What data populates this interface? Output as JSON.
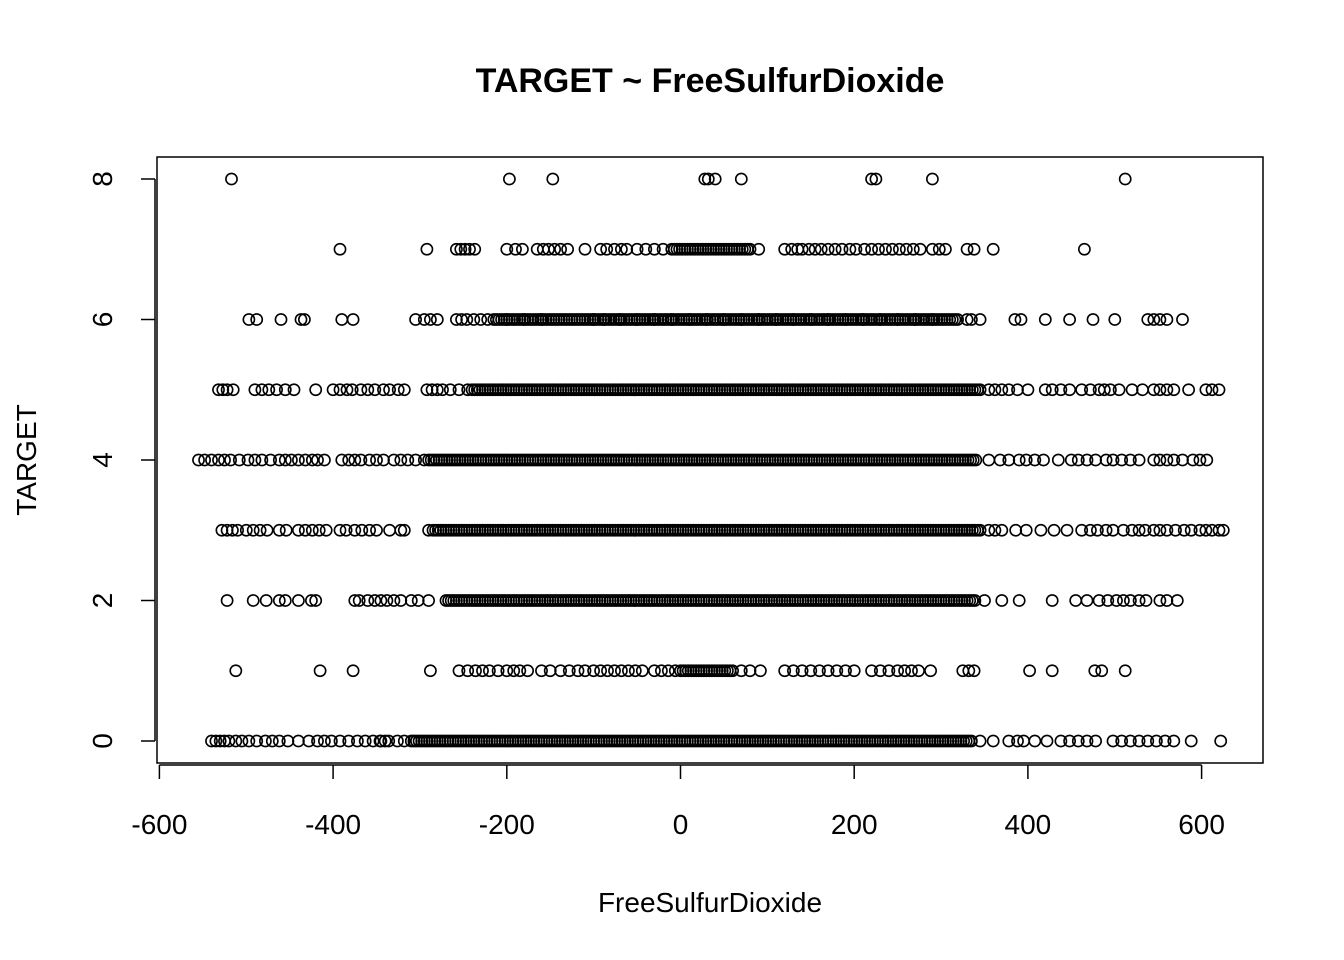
{
  "chart_data": {
    "type": "scatter",
    "title": "TARGET ~ FreeSulfurDioxide",
    "xlabel": "FreeSulfurDioxide",
    "ylabel": "TARGET",
    "xlim": [
      -560,
      625
    ],
    "ylim": [
      -0.3,
      8.3
    ],
    "xticks": [
      -600,
      -400,
      -200,
      0,
      200,
      400,
      600
    ],
    "yticks": [
      0,
      2,
      4,
      6,
      8
    ],
    "grid": false,
    "legend": "none",
    "marker": "open-circle",
    "point_color": "#000000",
    "rows": [
      {
        "y": 0,
        "dense": [
          -310,
          335
        ],
        "x": [
          -540,
          -535,
          -530,
          -525,
          -520,
          -512,
          -505,
          -497,
          -488,
          -478,
          -470,
          -462,
          -452,
          -440,
          -428,
          -418,
          -410,
          -402,
          -392,
          -382,
          -372,
          -363,
          -354,
          -346,
          -336,
          -326,
          -318,
          -340,
          -345,
          345,
          360,
          378,
          388,
          395,
          408,
          422,
          438,
          448,
          458,
          468,
          478,
          498,
          508,
          518,
          528,
          538,
          548,
          558,
          568,
          588,
          622
        ]
      },
      {
        "y": 1,
        "dense": [
          0,
          60
        ],
        "x": [
          -512,
          -415,
          -377,
          -288,
          -255,
          -245,
          -236,
          -228,
          -220,
          -210,
          -200,
          -192,
          -185,
          -176,
          -160,
          -150,
          -138,
          -128,
          -118,
          -110,
          -100,
          -92,
          -84,
          -76,
          -68,
          -60,
          -52,
          -44,
          -30,
          -22,
          -14,
          -6,
          70,
          80,
          92,
          120,
          130,
          140,
          150,
          160,
          170,
          180,
          190,
          200,
          220,
          230,
          240,
          250,
          258,
          266,
          274,
          288,
          325,
          332,
          338,
          402,
          428,
          477,
          485,
          512
        ]
      },
      {
        "y": 2,
        "dense": [
          -270,
          340
        ],
        "x": [
          -522,
          -492,
          -477,
          -462,
          -455,
          -440,
          -425,
          -420,
          -375,
          -370,
          -360,
          -352,
          -345,
          -338,
          -330,
          -322,
          -310,
          -302,
          -290,
          350,
          370,
          390,
          428,
          455,
          468,
          482,
          492,
          502,
          510,
          518,
          528,
          536,
          552,
          560,
          572
        ]
      },
      {
        "y": 3,
        "dense": [
          -285,
          345
        ],
        "x": [
          -528,
          -522,
          -516,
          -510,
          -500,
          -492,
          -484,
          -476,
          -462,
          -454,
          -440,
          -432,
          -424,
          -416,
          -408,
          -392,
          -385,
          -375,
          -367,
          -358,
          -350,
          -335,
          -322,
          -318,
          -290,
          355,
          362,
          370,
          386,
          398,
          415,
          430,
          445,
          462,
          472,
          480,
          490,
          498,
          510,
          520,
          528,
          535,
          545,
          552,
          560,
          570,
          580,
          588,
          598,
          605,
          612,
          620,
          625
        ]
      },
      {
        "y": 4,
        "dense": [
          -290,
          340
        ],
        "x": [
          -555,
          -548,
          -540,
          -532,
          -525,
          -518,
          -508,
          -498,
          -490,
          -482,
          -472,
          -462,
          -455,
          -448,
          -440,
          -432,
          -424,
          -418,
          -410,
          -390,
          -382,
          -375,
          -368,
          -358,
          -350,
          -342,
          -330,
          -322,
          -314,
          -305,
          -295,
          355,
          368,
          378,
          390,
          398,
          408,
          418,
          435,
          450,
          458,
          468,
          478,
          490,
          498,
          508,
          518,
          528,
          545,
          552,
          560,
          568,
          578,
          590,
          598,
          606
        ]
      },
      {
        "y": 5,
        "dense": [
          -240,
          345
        ],
        "x": [
          -532,
          -527,
          -522,
          -515,
          -490,
          -482,
          -474,
          -465,
          -455,
          -445,
          -420,
          -400,
          -392,
          -384,
          -378,
          -368,
          -360,
          -352,
          -342,
          -335,
          -325,
          -318,
          -292,
          -286,
          -280,
          -274,
          -265,
          -255,
          -245,
          355,
          362,
          370,
          378,
          388,
          400,
          420,
          428,
          438,
          448,
          462,
          472,
          482,
          488,
          495,
          505,
          520,
          532,
          545,
          552,
          560,
          568,
          585,
          605,
          612,
          620
        ]
      },
      {
        "y": 6,
        "dense": [
          -215,
          320
        ],
        "x": [
          -497,
          -488,
          -460,
          -437,
          -433,
          -390,
          -377,
          -305,
          -295,
          -288,
          -280,
          -258,
          -252,
          -246,
          -238,
          -230,
          -222,
          -200,
          -180,
          -160,
          -100,
          -88,
          -70,
          -50,
          -30,
          -10,
          10,
          30,
          50,
          70,
          90,
          110,
          130,
          150,
          170,
          190,
          210,
          230,
          250,
          270,
          290,
          330,
          335,
          345,
          385,
          392,
          420,
          448,
          475,
          500,
          538,
          545,
          552,
          560,
          578
        ]
      },
      {
        "y": 7,
        "dense": [
          -10,
          80
        ],
        "x": [
          -392,
          -292,
          -258,
          -253,
          -248,
          -243,
          -237,
          -200,
          -190,
          -182,
          -165,
          -158,
          -152,
          -145,
          -138,
          -130,
          -110,
          -92,
          -85,
          -76,
          -68,
          -62,
          -50,
          -40,
          -30,
          -20,
          90,
          120,
          128,
          135,
          140,
          148,
          155,
          162,
          170,
          178,
          186,
          195,
          202,
          212,
          220,
          228,
          236,
          244,
          252,
          260,
          268,
          276,
          290,
          298,
          305,
          330,
          338,
          360,
          465
        ]
      },
      {
        "y": 8,
        "dense": null,
        "x": [
          -517,
          -197,
          -147,
          28,
          32,
          40,
          70,
          220,
          225,
          290,
          512
        ]
      }
    ]
  }
}
